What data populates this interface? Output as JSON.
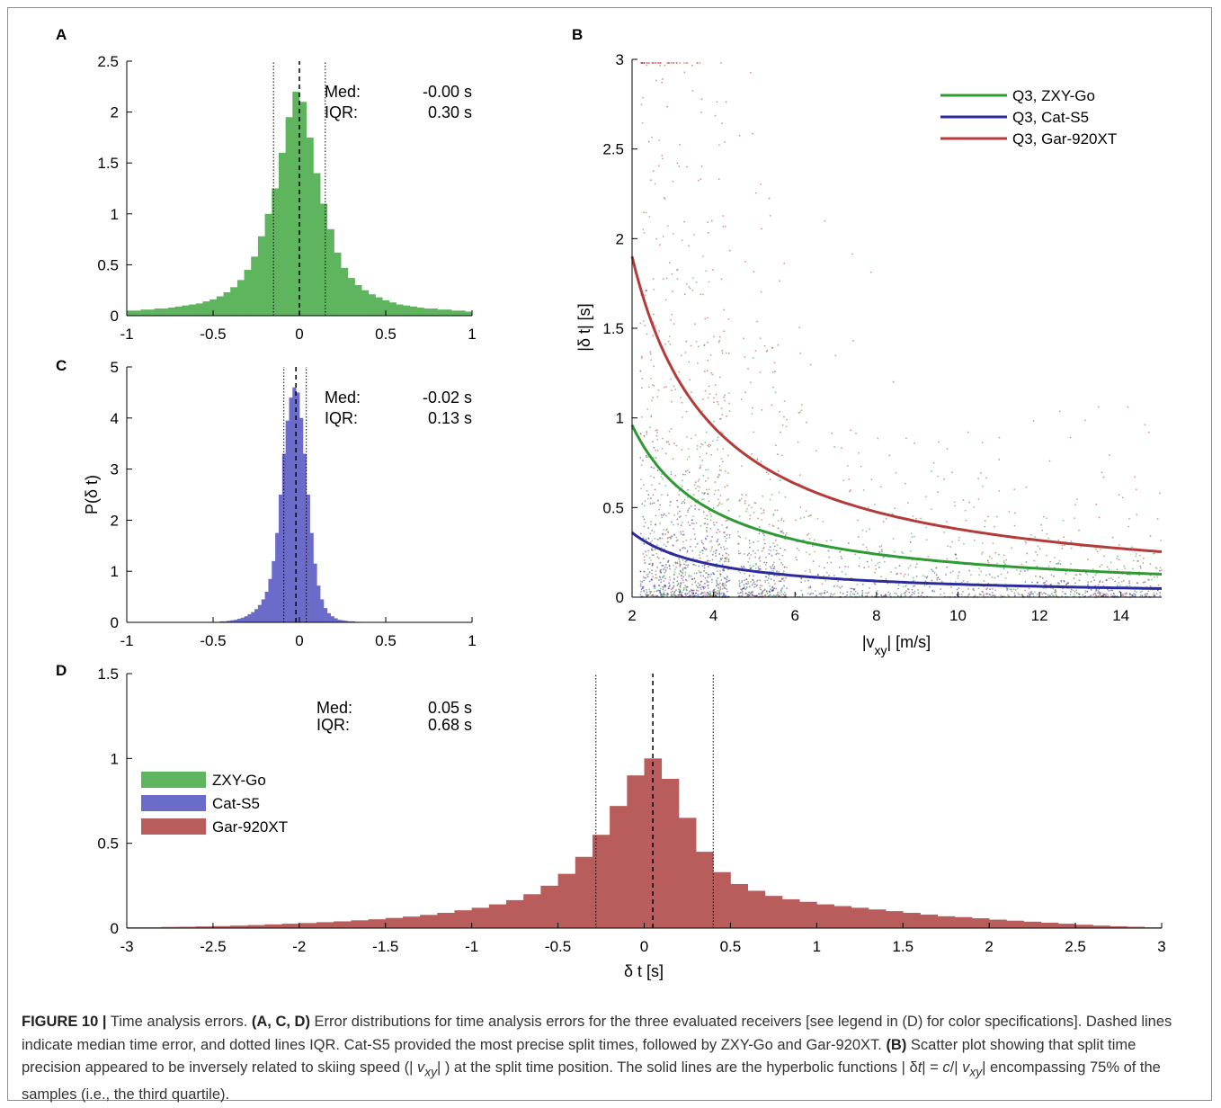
{
  "colors": {
    "zxy": "#5eb55e",
    "cat": "#6b6bc9",
    "gar": "#b85c5c",
    "zxy_line": "#2e9a33",
    "cat_line": "#2b2b9e",
    "gar_line": "#b53a3a"
  },
  "panels": {
    "A": {
      "label": "A",
      "med_label": "Med:",
      "med_value": "-0.00 s",
      "iqr_label": "IQR:",
      "iqr_value": "0.30 s"
    },
    "B": {
      "label": "B"
    },
    "C": {
      "label": "C",
      "med_label": "Med:",
      "med_value": "-0.02 s",
      "iqr_label": "IQR:",
      "iqr_value": "0.13 s"
    },
    "D": {
      "label": "D",
      "med_label": "Med:",
      "med_value": "0.05 s",
      "iqr_label": "IQR:",
      "iqr_value": "0.68 s"
    }
  },
  "chart_data": [
    {
      "panel": "A",
      "type": "bar",
      "series_name": "ZXY-Go",
      "color_key": "zxy",
      "xlim": [
        -1,
        1
      ],
      "ylim": [
        0,
        2.5
      ],
      "xticks": [
        "-1",
        "-0.5",
        "0",
        "0.5",
        "1"
      ],
      "yticks": [
        "0",
        "0.5",
        "1",
        "1.5",
        "2",
        "2.5"
      ],
      "median": 0.0,
      "iqr": [
        -0.15,
        0.15
      ],
      "x": [
        -0.98,
        -0.94,
        -0.9,
        -0.86,
        -0.82,
        -0.78,
        -0.74,
        -0.7,
        -0.66,
        -0.62,
        -0.58,
        -0.54,
        -0.5,
        -0.46,
        -0.42,
        -0.38,
        -0.34,
        -0.3,
        -0.26,
        -0.22,
        -0.18,
        -0.14,
        -0.1,
        -0.06,
        -0.02,
        0.02,
        0.06,
        0.1,
        0.14,
        0.18,
        0.22,
        0.26,
        0.3,
        0.34,
        0.38,
        0.42,
        0.46,
        0.5,
        0.54,
        0.58,
        0.62,
        0.66,
        0.7,
        0.74,
        0.78,
        0.82,
        0.86,
        0.9,
        0.94,
        0.98
      ],
      "values": [
        0.05,
        0.05,
        0.06,
        0.06,
        0.07,
        0.07,
        0.08,
        0.09,
        0.1,
        0.11,
        0.12,
        0.14,
        0.16,
        0.19,
        0.23,
        0.28,
        0.35,
        0.45,
        0.58,
        0.78,
        1.0,
        1.25,
        1.6,
        1.95,
        2.2,
        2.1,
        1.75,
        1.4,
        1.1,
        0.85,
        0.62,
        0.47,
        0.37,
        0.3,
        0.25,
        0.21,
        0.18,
        0.15,
        0.13,
        0.11,
        0.1,
        0.09,
        0.08,
        0.07,
        0.07,
        0.06,
        0.06,
        0.05,
        0.05,
        0.04
      ]
    },
    {
      "panel": "C",
      "type": "bar",
      "series_name": "Cat-S5",
      "color_key": "cat",
      "xlim": [
        -1,
        1
      ],
      "ylim": [
        0,
        5
      ],
      "xticks": [
        "-1",
        "-0.5",
        "0",
        "0.5",
        "1"
      ],
      "yticks": [
        "0",
        "1",
        "2",
        "3",
        "4",
        "5"
      ],
      "ylabel": "P(δ t)",
      "median": -0.02,
      "iqr": [
        -0.09,
        0.04
      ],
      "x": [
        -0.49,
        -0.47,
        -0.45,
        -0.43,
        -0.41,
        -0.39,
        -0.37,
        -0.35,
        -0.33,
        -0.31,
        -0.29,
        -0.27,
        -0.25,
        -0.23,
        -0.21,
        -0.19,
        -0.17,
        -0.15,
        -0.13,
        -0.11,
        -0.09,
        -0.07,
        -0.05,
        -0.03,
        -0.01,
        0.01,
        0.03,
        0.05,
        0.07,
        0.09,
        0.11,
        0.13,
        0.15,
        0.17,
        0.19,
        0.21,
        0.23,
        0.25,
        0.27,
        0.29,
        0.31,
        0.33,
        0.35
      ],
      "values": [
        0.01,
        0.01,
        0.02,
        0.02,
        0.03,
        0.04,
        0.05,
        0.07,
        0.09,
        0.12,
        0.16,
        0.2,
        0.26,
        0.34,
        0.45,
        0.6,
        0.85,
        1.2,
        1.75,
        2.5,
        3.3,
        3.95,
        4.4,
        4.6,
        4.5,
        4.0,
        3.3,
        2.5,
        1.75,
        1.15,
        0.72,
        0.45,
        0.28,
        0.18,
        0.12,
        0.08,
        0.05,
        0.04,
        0.03,
        0.02,
        0.02,
        0.01,
        0.01
      ]
    },
    {
      "panel": "B",
      "type": "scatter",
      "xlabel": "|v",
      "xlabel_sub": "xy",
      "xlabel_tail": "| [m/s]",
      "ylabel": "|δ t| [s]",
      "xlim": [
        2,
        15
      ],
      "ylim": [
        0,
        3
      ],
      "xticks": [
        "2",
        "4",
        "6",
        "8",
        "10",
        "12",
        "14"
      ],
      "yticks": [
        "0",
        "0.5",
        "1",
        "1.5",
        "2",
        "2.5",
        "3"
      ],
      "legend_position": "top-right",
      "series": [
        {
          "name": "Q3, ZXY-Go",
          "color_key": "zxy_line",
          "c": 1.92
        },
        {
          "name": "Q3, Cat-S5",
          "color_key": "cat_line",
          "c": 0.72
        },
        {
          "name": "Q3, Gar-920XT",
          "color_key": "gar_line",
          "c": 3.8
        }
      ]
    },
    {
      "panel": "D",
      "type": "bar",
      "series_name": "Gar-920XT",
      "color_key": "gar",
      "xlim": [
        -3,
        3
      ],
      "ylim": [
        0,
        1.5
      ],
      "xticks": [
        "-3",
        "-2.5",
        "-2",
        "-1.5",
        "-1",
        "-0.5",
        "0",
        "0.5",
        "1",
        "1.5",
        "2",
        "2.5",
        "3"
      ],
      "yticks": [
        "0",
        "0.5",
        "1",
        "1.5"
      ],
      "xlabel": "δ t [s]",
      "median": 0.05,
      "iqr": [
        -0.28,
        0.4
      ],
      "x": [
        -2.95,
        -2.85,
        -2.75,
        -2.65,
        -2.55,
        -2.45,
        -2.35,
        -2.25,
        -2.15,
        -2.05,
        -1.95,
        -1.85,
        -1.75,
        -1.65,
        -1.55,
        -1.45,
        -1.35,
        -1.25,
        -1.15,
        -1.05,
        -0.95,
        -0.85,
        -0.75,
        -0.65,
        -0.55,
        -0.45,
        -0.35,
        -0.25,
        -0.15,
        -0.05,
        0.05,
        0.15,
        0.25,
        0.35,
        0.45,
        0.55,
        0.65,
        0.75,
        0.85,
        0.95,
        1.05,
        1.15,
        1.25,
        1.35,
        1.45,
        1.55,
        1.65,
        1.75,
        1.85,
        1.95,
        2.05,
        2.15,
        2.25,
        2.35,
        2.45,
        2.55,
        2.65,
        2.75,
        2.85,
        2.95
      ],
      "values": [
        0.005,
        0.005,
        0.007,
        0.008,
        0.01,
        0.012,
        0.015,
        0.018,
        0.022,
        0.026,
        0.03,
        0.035,
        0.04,
        0.046,
        0.052,
        0.06,
        0.068,
        0.078,
        0.09,
        0.105,
        0.12,
        0.14,
        0.165,
        0.2,
        0.25,
        0.32,
        0.42,
        0.55,
        0.72,
        0.9,
        1.0,
        0.88,
        0.65,
        0.45,
        0.33,
        0.26,
        0.22,
        0.19,
        0.17,
        0.155,
        0.14,
        0.13,
        0.12,
        0.11,
        0.1,
        0.09,
        0.08,
        0.07,
        0.065,
        0.058,
        0.05,
        0.044,
        0.038,
        0.032,
        0.026,
        0.02,
        0.015,
        0.011,
        0.008,
        0.005
      ]
    }
  ],
  "legend_D": [
    {
      "label": "ZXY-Go",
      "color_key": "zxy"
    },
    {
      "label": "Cat-S5",
      "color_key": "cat"
    },
    {
      "label": "Gar-920XT",
      "color_key": "gar"
    }
  ],
  "caption": {
    "figure_label": "FIGURE 10 |",
    "t1": " Time analysis errors. ",
    "b1": "(A, C, D)",
    "t2": " Error distributions for time analysis errors for the three evaluated receivers [see legend in (D) for color specifications]. Dashed lines indicate median time error, and dotted lines IQR. Cat-S5 provided the most precise split times, followed by ZXY-Go and Gar-920XT. ",
    "b2": "(B)",
    "t3": " Scatter plot showing that split time precision appeared to be inversely related to skiing speed (| ",
    "v1": "v",
    "v1sub": "xy",
    "t4": "| ) at the split time position. The solid lines are the hyperbolic functions | δ",
    "t_it": "t",
    "t5": "| = ",
    "c_it": "c",
    "t6": "/| ",
    "v2": "v",
    "v2sub": "xy",
    "t7": "| encompassing 75% of the samples (i.e., the third quartile)."
  }
}
